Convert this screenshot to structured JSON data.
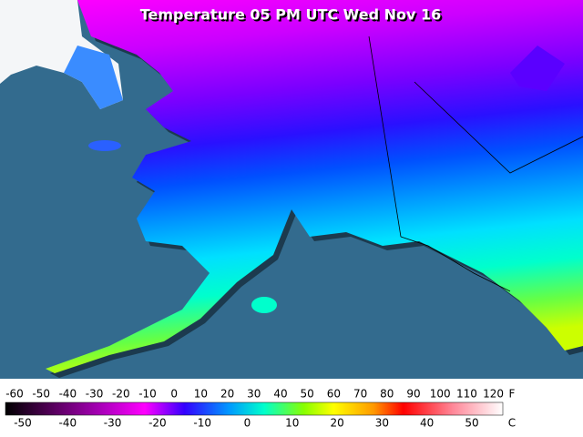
{
  "title": "Temperature 05 PM UTC Wed Nov 16",
  "legend": {
    "fahrenheit": {
      "unit": "F",
      "labels": [
        -60,
        -50,
        -40,
        -30,
        -20,
        -10,
        0,
        10,
        20,
        30,
        40,
        50,
        60,
        70,
        80,
        90,
        100,
        110,
        120
      ]
    },
    "celsius": {
      "unit": "C",
      "labels": [
        -50,
        -40,
        -30,
        -20,
        -10,
        0,
        10,
        20,
        30,
        40,
        50
      ]
    }
  }
}
